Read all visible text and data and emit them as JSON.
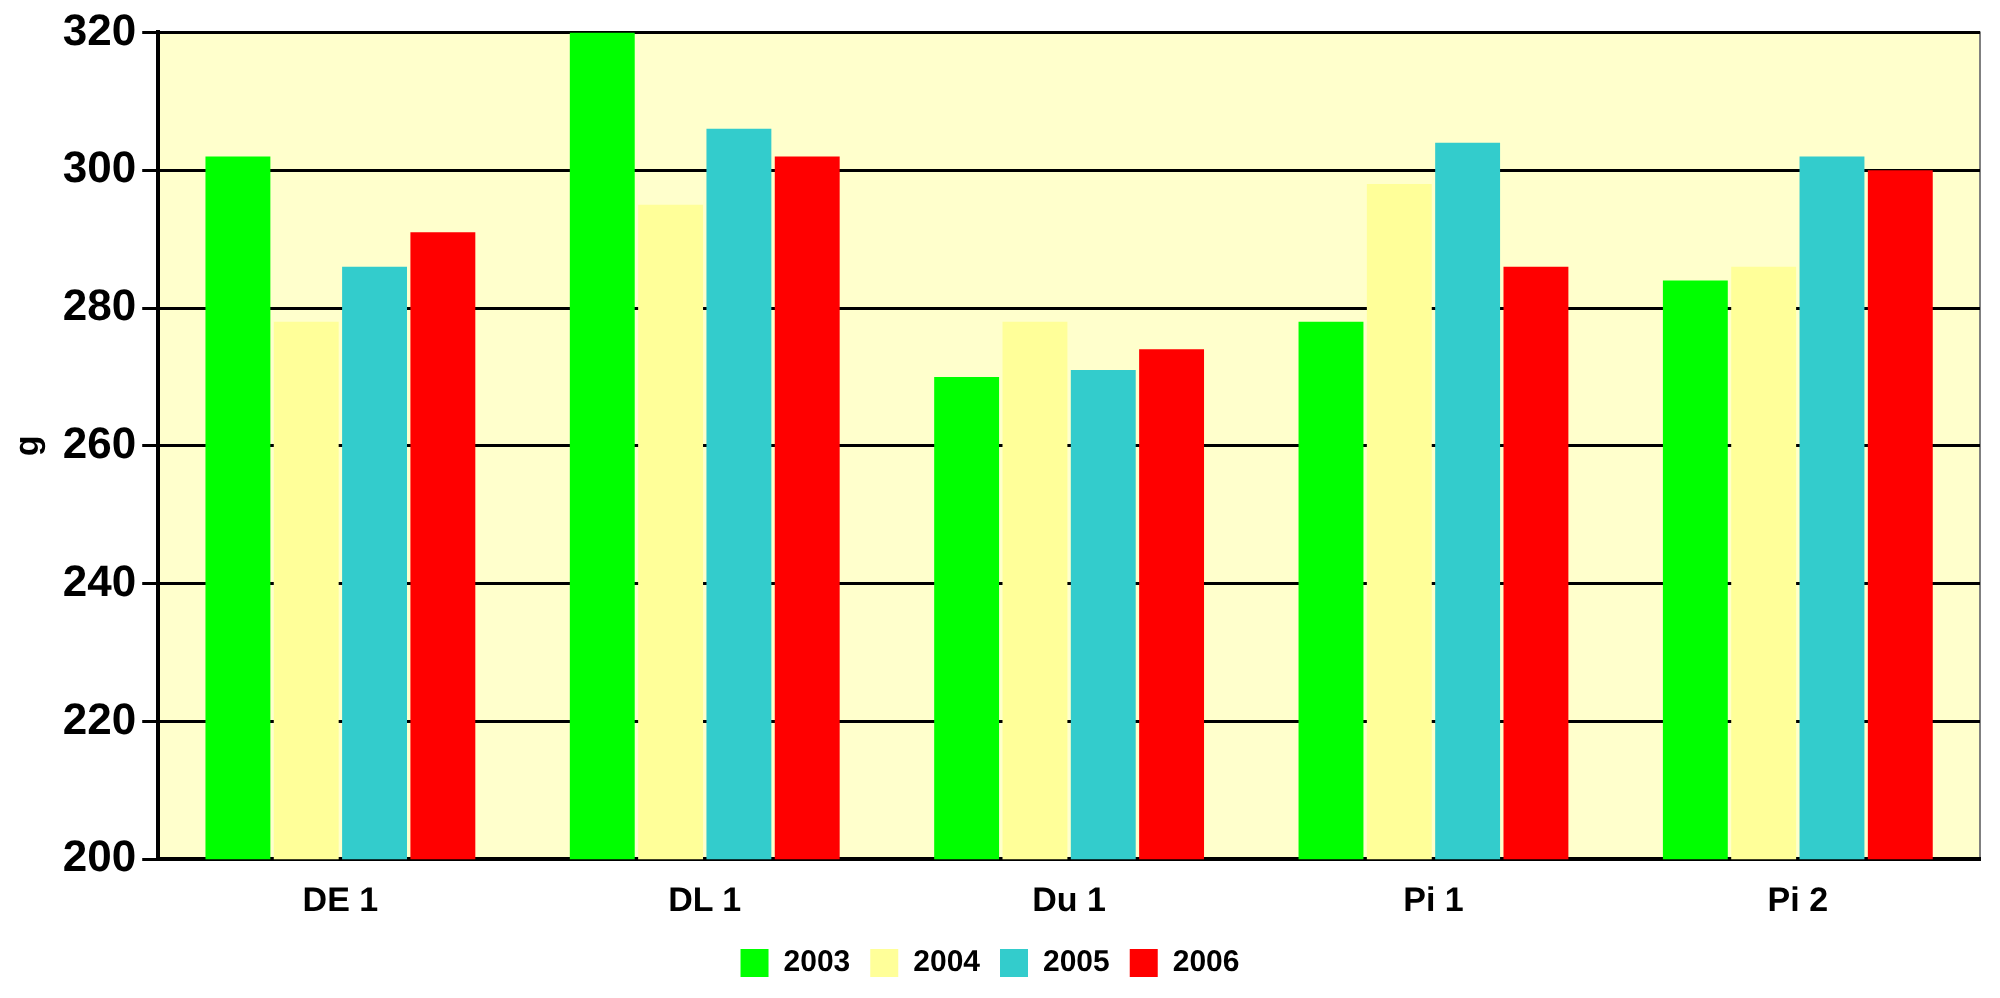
{
  "chart_data": {
    "type": "bar",
    "ylabel": "g",
    "categories": [
      "DE 1",
      "DL 1",
      "Du 1",
      "Pi 1",
      "Pi 2"
    ],
    "series": [
      {
        "name": "2003",
        "color": "#00ff00",
        "values": [
          302,
          320,
          270,
          278,
          284
        ]
      },
      {
        "name": "2004",
        "color": "#ffff99",
        "values": [
          278,
          295,
          278,
          298,
          286
        ]
      },
      {
        "name": "2005",
        "color": "#33cccc",
        "values": [
          286,
          306,
          271,
          304,
          302
        ]
      },
      {
        "name": "2006",
        "color": "#ff0000",
        "values": [
          291,
          302,
          274,
          286,
          300
        ]
      }
    ],
    "ylim": [
      200,
      320
    ],
    "yticks": [
      200,
      220,
      240,
      260,
      280,
      300,
      320
    ],
    "grid": "y",
    "legend": "bottom"
  }
}
